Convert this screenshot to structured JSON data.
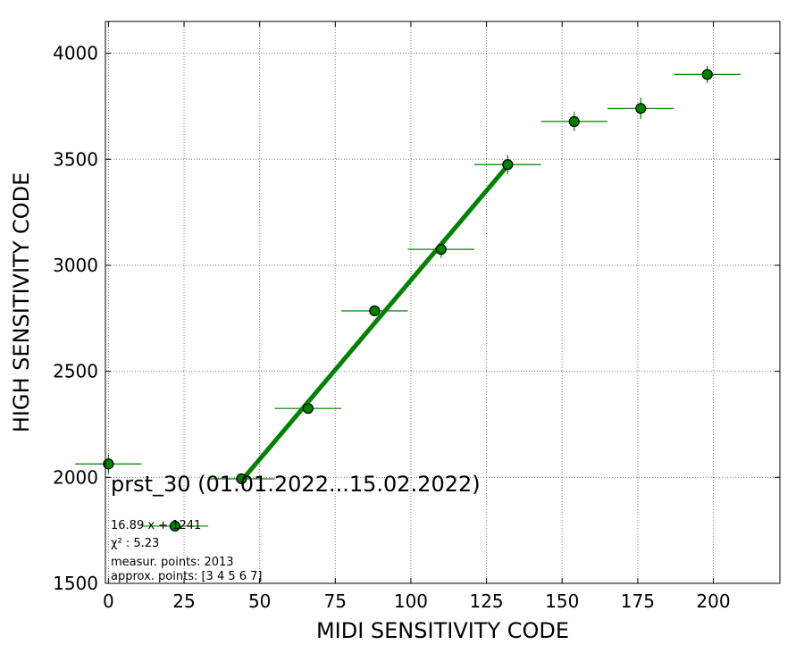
{
  "chart_data": {
    "type": "scatter",
    "xlabel": "MIDI SENSITIVITY CODE",
    "ylabel": "HIGH SENSITIVITY CODE",
    "xlim": [
      -1,
      222
    ],
    "ylim": [
      1500,
      4150
    ],
    "xticks": [
      0,
      25,
      50,
      75,
      100,
      125,
      150,
      175,
      200
    ],
    "yticks": [
      1500,
      2000,
      2500,
      3000,
      3500,
      4000
    ],
    "grid": true,
    "grid_style": "dotted",
    "colors": {
      "points": "#008000",
      "marker_edge": "#000000",
      "fit_line": "#008000"
    },
    "points": [
      {
        "x": 0,
        "y": 2063,
        "xerr": 11,
        "yerr": 45
      },
      {
        "x": 22,
        "y": 1770,
        "xerr": 11,
        "yerr": 20
      },
      {
        "x": 44,
        "y": 1993,
        "xerr": 11,
        "yerr": 20
      },
      {
        "x": 66,
        "y": 2325,
        "xerr": 11,
        "yerr": 20
      },
      {
        "x": 88,
        "y": 2785,
        "xerr": 11,
        "yerr": 25
      },
      {
        "x": 110,
        "y": 3075,
        "xerr": 11,
        "yerr": 40
      },
      {
        "x": 132,
        "y": 3475,
        "xerr": 11,
        "yerr": 45
      },
      {
        "x": 154,
        "y": 3678,
        "xerr": 11,
        "yerr": 45
      },
      {
        "x": 176,
        "y": 3740,
        "xerr": 11,
        "yerr": 50
      },
      {
        "x": 198,
        "y": 3900,
        "xerr": 11,
        "yerr": 40
      }
    ],
    "fit_line": {
      "x": [
        44,
        132
      ],
      "y": [
        1984,
        3470
      ]
    },
    "annotations": {
      "title": "prst_30 (01.01.2022...15.02.2022)",
      "equation": "16.89 x + 1241",
      "chi2": "χ² : 5.23",
      "measur": "measur. points: 2013",
      "approx": "approx. points: [3 4 5 6 7]"
    }
  }
}
